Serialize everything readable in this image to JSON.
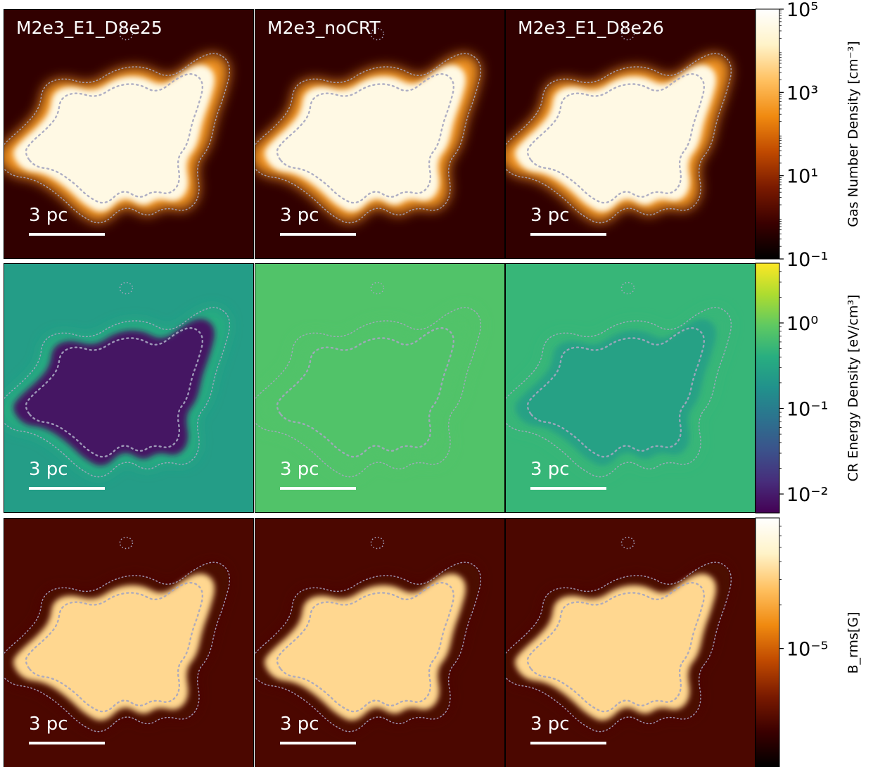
{
  "chart_data": {
    "type": "heatmap",
    "grid": {
      "rows": 3,
      "cols": 3
    },
    "columns": [
      {
        "title": "M2e3_E1_D8e25"
      },
      {
        "title": "M2e3_noCRT"
      },
      {
        "title": "M2e3_E1_D8e26"
      }
    ],
    "scale_bar_label": "3 pc",
    "rows": [
      {
        "quantity": "gas_number_density",
        "colormap": "afmhot",
        "colorbar": {
          "label": "Gas Number Density [cm⁻³]",
          "scale": "log",
          "range": [
            0.1,
            100000
          ],
          "ticks": [
            {
              "value": 100000,
              "label": "10⁵"
            },
            {
              "value": 1000,
              "label": "10³"
            },
            {
              "value": 10,
              "label": "10¹"
            },
            {
              "value": 0.1,
              "label": "10⁻¹"
            }
          ]
        },
        "panels": [
          {
            "core_level": 0.93,
            "halo_level": 0.6,
            "bg_level": 0.12
          },
          {
            "core_level": 0.93,
            "halo_level": 0.6,
            "bg_level": 0.12
          },
          {
            "core_level": 0.93,
            "halo_level": 0.6,
            "bg_level": 0.12
          }
        ]
      },
      {
        "quantity": "cr_energy_density",
        "colormap": "viridis",
        "colorbar": {
          "label": "CR Energy Density [eV/cm³]",
          "scale": "log",
          "range": [
            0.006,
            5
          ],
          "ticks": [
            {
              "value": 1,
              "label": "10⁰"
            },
            {
              "value": 0.1,
              "label": "10⁻¹"
            },
            {
              "value": 0.01,
              "label": "10⁻²"
            }
          ]
        },
        "panels": [
          {
            "core_level": 0.05,
            "halo_level": 0.62,
            "bg_level": 0.55
          },
          {
            "core_level": 0.72,
            "halo_level": 0.72,
            "bg_level": 0.72
          },
          {
            "core_level": 0.57,
            "halo_level": 0.66,
            "bg_level": 0.66
          }
        ]
      },
      {
        "quantity": "b_rms",
        "colormap": "afmhot",
        "colorbar": {
          "label": "B_rms[G]",
          "scale": "log",
          "ticks": [
            {
              "value": 1e-05,
              "label": "10⁻⁵"
            }
          ]
        },
        "panels": [
          {
            "core_level": 0.78,
            "halo_level": 0.18,
            "bg_level": 0.18
          },
          {
            "core_level": 0.78,
            "halo_level": 0.18,
            "bg_level": 0.18
          },
          {
            "core_level": 0.78,
            "halo_level": 0.18,
            "bg_level": 0.18
          }
        ]
      }
    ],
    "colormaps": {
      "afmhot": [
        "#000000",
        "#3a0000",
        "#7a1a00",
        "#c04a00",
        "#f08a10",
        "#ffc060",
        "#fff3c8",
        "#ffffff"
      ],
      "viridis": [
        "#440154",
        "#472d7b",
        "#3b528b",
        "#2c728e",
        "#21918c",
        "#28ae80",
        "#5ec962",
        "#addc30",
        "#fde725"
      ]
    },
    "contour_color": "#a6a6c0"
  }
}
